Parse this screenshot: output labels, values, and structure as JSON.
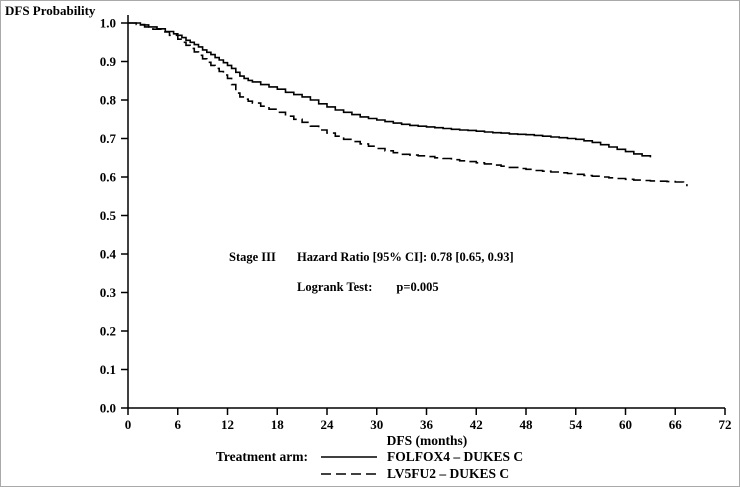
{
  "figure": {
    "background": "#ffffff",
    "line_color": "#000000"
  },
  "annotation": {
    "stage_label": "Stage III",
    "hr_text": "Hazard Ratio [95% CI]: 0.78 [0.65, 0.93]",
    "logrank_label": "Logrank Test:",
    "logrank_value": "p=0.005"
  },
  "legend": {
    "title": "Treatment arm:",
    "items": [
      {
        "label": "FOLFOX4 – DUKES C",
        "line_style": "solid"
      },
      {
        "label": "LV5FU2 – DUKES C",
        "line_style": "dashed"
      }
    ]
  },
  "chart_data": {
    "type": "line",
    "subtype": "kaplan-meier-step",
    "title": "",
    "xlabel": "DFS (months)",
    "ylabel": "DFS Probability",
    "xlim": [
      0,
      72
    ],
    "ylim": [
      0.0,
      1.0
    ],
    "x_ticks": [
      0,
      6,
      12,
      18,
      24,
      30,
      36,
      42,
      48,
      54,
      60,
      66,
      72
    ],
    "y_ticks": [
      0.0,
      0.1,
      0.2,
      0.3,
      0.4,
      0.5,
      0.6,
      0.7,
      0.8,
      0.9,
      1.0
    ],
    "grid": false,
    "legend_position": "bottom",
    "series": [
      {
        "name": "FOLFOX4 - DUKES C",
        "line_style": "solid",
        "color": "#000000",
        "points": [
          [
            0,
            1.0
          ],
          [
            1.5,
            0.995
          ],
          [
            2.5,
            0.99
          ],
          [
            3.5,
            0.985
          ],
          [
            4.5,
            0.978
          ],
          [
            5.5,
            0.972
          ],
          [
            6,
            0.968
          ],
          [
            6.5,
            0.962
          ],
          [
            7,
            0.955
          ],
          [
            7.5,
            0.95
          ],
          [
            8,
            0.944
          ],
          [
            8.5,
            0.938
          ],
          [
            9,
            0.93
          ],
          [
            9.5,
            0.924
          ],
          [
            10,
            0.918
          ],
          [
            10.5,
            0.91
          ],
          [
            11,
            0.904
          ],
          [
            11.5,
            0.897
          ],
          [
            12,
            0.89
          ],
          [
            12.5,
            0.882
          ],
          [
            13,
            0.872
          ],
          [
            13.5,
            0.862
          ],
          [
            14,
            0.856
          ],
          [
            14.5,
            0.851
          ],
          [
            15,
            0.847
          ],
          [
            16,
            0.84
          ],
          [
            17,
            0.834
          ],
          [
            18,
            0.828
          ],
          [
            19,
            0.82
          ],
          [
            20,
            0.814
          ],
          [
            21,
            0.808
          ],
          [
            22,
            0.8
          ],
          [
            23,
            0.79
          ],
          [
            24,
            0.782
          ],
          [
            25,
            0.774
          ],
          [
            26,
            0.768
          ],
          [
            27,
            0.762
          ],
          [
            28,
            0.756
          ],
          [
            29,
            0.752
          ],
          [
            30,
            0.748
          ],
          [
            31,
            0.744
          ],
          [
            32,
            0.74
          ],
          [
            33,
            0.737
          ],
          [
            34,
            0.734
          ],
          [
            35,
            0.732
          ],
          [
            36,
            0.73
          ],
          [
            37,
            0.728
          ],
          [
            38,
            0.726
          ],
          [
            39,
            0.724
          ],
          [
            40,
            0.722
          ],
          [
            41,
            0.721
          ],
          [
            42,
            0.719
          ],
          [
            43,
            0.717
          ],
          [
            44,
            0.715
          ],
          [
            45,
            0.714
          ],
          [
            46,
            0.712
          ],
          [
            47,
            0.711
          ],
          [
            48,
            0.71
          ],
          [
            49,
            0.708
          ],
          [
            50,
            0.706
          ],
          [
            51,
            0.704
          ],
          [
            52,
            0.702
          ],
          [
            53,
            0.7
          ],
          [
            54,
            0.698
          ],
          [
            55,
            0.694
          ],
          [
            56,
            0.69
          ],
          [
            57,
            0.684
          ],
          [
            58,
            0.678
          ],
          [
            59,
            0.672
          ],
          [
            60,
            0.666
          ],
          [
            61,
            0.66
          ],
          [
            62,
            0.655
          ],
          [
            63,
            0.651
          ]
        ]
      },
      {
        "name": "LV5FU2 - DUKES C",
        "line_style": "dashed",
        "color": "#000000",
        "points": [
          [
            0,
            1.0
          ],
          [
            1,
            0.996
          ],
          [
            2,
            0.99
          ],
          [
            3,
            0.984
          ],
          [
            4,
            0.977
          ],
          [
            5,
            0.968
          ],
          [
            6,
            0.958
          ],
          [
            6.5,
            0.95
          ],
          [
            7,
            0.942
          ],
          [
            7.5,
            0.934
          ],
          [
            8,
            0.925
          ],
          [
            8.5,
            0.916
          ],
          [
            9,
            0.907
          ],
          [
            9.5,
            0.898
          ],
          [
            10,
            0.89
          ],
          [
            10.5,
            0.882
          ],
          [
            11,
            0.874
          ],
          [
            11.5,
            0.865
          ],
          [
            12,
            0.856
          ],
          [
            12.5,
            0.84
          ],
          [
            13,
            0.818
          ],
          [
            13.5,
            0.808
          ],
          [
            14,
            0.802
          ],
          [
            14.5,
            0.797
          ],
          [
            15,
            0.792
          ],
          [
            16,
            0.784
          ],
          [
            17,
            0.776
          ],
          [
            18,
            0.768
          ],
          [
            19,
            0.758
          ],
          [
            20,
            0.75
          ],
          [
            21,
            0.742
          ],
          [
            22,
            0.732
          ],
          [
            23,
            0.722
          ],
          [
            24,
            0.714
          ],
          [
            25,
            0.706
          ],
          [
            26,
            0.698
          ],
          [
            27,
            0.692
          ],
          [
            28,
            0.686
          ],
          [
            29,
            0.68
          ],
          [
            30,
            0.674
          ],
          [
            31,
            0.668
          ],
          [
            32,
            0.663
          ],
          [
            33,
            0.659
          ],
          [
            34,
            0.657
          ],
          [
            35,
            0.655
          ],
          [
            36,
            0.653
          ],
          [
            37,
            0.65
          ],
          [
            38,
            0.648
          ],
          [
            39,
            0.645
          ],
          [
            40,
            0.642
          ],
          [
            41,
            0.64
          ],
          [
            42,
            0.637
          ],
          [
            43,
            0.634
          ],
          [
            44,
            0.631
          ],
          [
            45,
            0.628
          ],
          [
            46,
            0.625
          ],
          [
            47,
            0.622
          ],
          [
            48,
            0.62
          ],
          [
            49,
            0.617
          ],
          [
            50,
            0.615
          ],
          [
            51,
            0.613
          ],
          [
            52,
            0.611
          ],
          [
            53,
            0.609
          ],
          [
            54,
            0.607
          ],
          [
            55,
            0.604
          ],
          [
            56,
            0.602
          ],
          [
            57,
            0.6
          ],
          [
            58,
            0.598
          ],
          [
            59,
            0.596
          ],
          [
            60,
            0.594
          ],
          [
            61,
            0.592
          ],
          [
            62,
            0.591
          ],
          [
            63,
            0.59
          ],
          [
            64,
            0.589
          ],
          [
            65,
            0.588
          ],
          [
            66,
            0.587
          ],
          [
            67,
            0.585
          ],
          [
            67.4,
            0.576
          ]
        ]
      }
    ]
  }
}
